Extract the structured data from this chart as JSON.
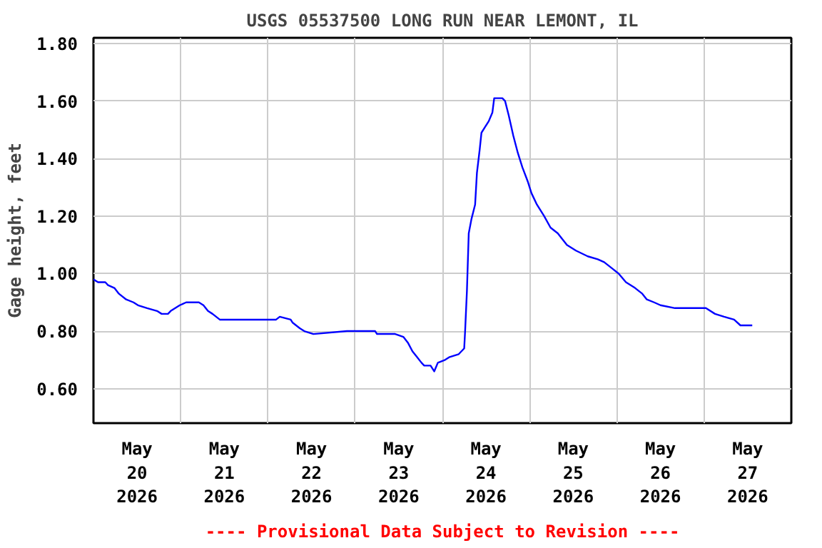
{
  "chart_data": {
    "type": "line",
    "title": "USGS 05537500 LONG RUN NEAR LEMONT, IL",
    "ylabel": "Gage height, feet",
    "annotations": [
      "---- Provisional Data Subject to Revision ----"
    ],
    "x": [
      "2026-05-20T00:00",
      "2026-05-20T01:15",
      "2026-05-20T03:15",
      "2026-05-20T04:00",
      "2026-05-20T05:45",
      "2026-05-20T07:00",
      "2026-05-20T09:00",
      "2026-05-20T11:00",
      "2026-05-20T12:15",
      "2026-05-20T14:45",
      "2026-05-20T17:30",
      "2026-05-20T18:45",
      "2026-05-20T20:30",
      "2026-05-20T21:15",
      "2026-05-20T22:30",
      "2026-05-20T23:45",
      "2026-05-21T01:30",
      "2026-05-21T05:00",
      "2026-05-21T06:15",
      "2026-05-21T07:30",
      "2026-05-21T08:45",
      "2026-05-21T10:45",
      "2026-05-22T02:15",
      "2026-05-22T03:15",
      "2026-05-22T06:15",
      "2026-05-22T06:45",
      "2026-05-22T08:45",
      "2026-05-22T10:00",
      "2026-05-22T12:30",
      "2026-05-22T21:45",
      "2026-05-23T05:30",
      "2026-05-23T06:00",
      "2026-05-23T11:00",
      "2026-05-23T13:15",
      "2026-05-23T14:30",
      "2026-05-23T15:45",
      "2026-05-23T17:00",
      "2026-05-23T18:15",
      "2026-05-23T19:00",
      "2026-05-23T20:45",
      "2026-05-23T21:45",
      "2026-05-23T22:45",
      "2026-05-24T00:45",
      "2026-05-24T02:00",
      "2026-05-24T04:30",
      "2026-05-24T06:00",
      "2026-05-24T06:15",
      "2026-05-24T06:45",
      "2026-05-24T07:15",
      "2026-05-24T08:00",
      "2026-05-24T09:00",
      "2026-05-24T09:30",
      "2026-05-24T10:15",
      "2026-05-24T10:45",
      "2026-05-24T11:45",
      "2026-05-24T12:45",
      "2026-05-24T13:45",
      "2026-05-24T14:15",
      "2026-05-24T16:30",
      "2026-05-24T17:15",
      "2026-05-24T18:15",
      "2026-05-24T19:30",
      "2026-05-24T20:45",
      "2026-05-24T22:00",
      "2026-05-24T23:30",
      "2026-05-25T00:30",
      "2026-05-25T02:00",
      "2026-05-25T04:00",
      "2026-05-25T05:45",
      "2026-05-25T07:45",
      "2026-05-25T10:15",
      "2026-05-25T12:45",
      "2026-05-25T16:00",
      "2026-05-25T18:45",
      "2026-05-25T20:30",
      "2026-05-25T22:30",
      "2026-05-26T00:30",
      "2026-05-26T02:30",
      "2026-05-26T05:00",
      "2026-05-26T07:00",
      "2026-05-26T08:15",
      "2026-05-26T10:15",
      "2026-05-26T12:00",
      "2026-05-26T16:00",
      "2026-05-27T00:30",
      "2026-05-27T03:00",
      "2026-05-27T05:30",
      "2026-05-27T08:15",
      "2026-05-27T10:00",
      "2026-05-27T13:15"
    ],
    "series": [
      {
        "color": "#0000ff",
        "values": [
          0.98,
          0.97,
          0.97,
          0.96,
          0.95,
          0.93,
          0.91,
          0.9,
          0.89,
          0.88,
          0.87,
          0.86,
          0.86,
          0.87,
          0.88,
          0.89,
          0.9,
          0.9,
          0.89,
          0.87,
          0.86,
          0.84,
          0.84,
          0.85,
          0.84,
          0.83,
          0.81,
          0.8,
          0.79,
          0.8,
          0.8,
          0.79,
          0.79,
          0.78,
          0.76,
          0.73,
          0.71,
          0.69,
          0.68,
          0.68,
          0.66,
          0.69,
          0.7,
          0.71,
          0.72,
          0.74,
          0.8,
          0.94,
          1.14,
          1.19,
          1.24,
          1.35,
          1.43,
          1.49,
          1.51,
          1.53,
          1.56,
          1.61,
          1.61,
          1.6,
          1.55,
          1.48,
          1.42,
          1.37,
          1.32,
          1.28,
          1.24,
          1.2,
          1.16,
          1.14,
          1.1,
          1.08,
          1.06,
          1.05,
          1.04,
          1.02,
          1.0,
          0.97,
          0.95,
          0.93,
          0.91,
          0.9,
          0.89,
          0.88,
          0.88,
          0.86,
          0.85,
          0.84,
          0.82,
          0.82
        ]
      }
    ],
    "xlim": [
      "2026-05-20T00:00",
      "2026-05-28T00:00"
    ],
    "xticks": [
      {
        "value": "2026-05-20T12:00",
        "label": "May\n20\n2026"
      },
      {
        "value": "2026-05-21T12:00",
        "label": "May\n21\n2026"
      },
      {
        "value": "2026-05-22T12:00",
        "label": "May\n22\n2026"
      },
      {
        "value": "2026-05-23T12:00",
        "label": "May\n23\n2026"
      },
      {
        "value": "2026-05-24T12:00",
        "label": "May\n24\n2026"
      },
      {
        "value": "2026-05-25T12:00",
        "label": "May\n25\n2026"
      },
      {
        "value": "2026-05-26T12:00",
        "label": "May\n26\n2026"
      },
      {
        "value": "2026-05-27T12:00",
        "label": "May\n27\n2026"
      },
      {
        "value": "2026-05-21T00:00",
        "label": null
      },
      {
        "value": "2026-05-22T00:00",
        "label": null
      },
      {
        "value": "2026-05-23T00:00",
        "label": null
      },
      {
        "value": "2026-05-24T00:00",
        "label": null
      },
      {
        "value": "2026-05-25T00:00",
        "label": null
      },
      {
        "value": "2026-05-26T00:00",
        "label": null
      },
      {
        "value": "2026-05-27T00:00",
        "label": null
      }
    ],
    "ylim": [
      0.48,
      1.82
    ],
    "yticks": [
      {
        "value": 0.6,
        "label": "0.60"
      },
      {
        "value": 0.8,
        "label": "0.80"
      },
      {
        "value": 1.0,
        "label": "1.00"
      },
      {
        "value": 1.2,
        "label": "1.20"
      },
      {
        "value": 1.4,
        "label": "1.40"
      },
      {
        "value": 1.6,
        "label": "1.60"
      },
      {
        "value": 1.8,
        "label": "1.80"
      }
    ],
    "grid": true
  }
}
